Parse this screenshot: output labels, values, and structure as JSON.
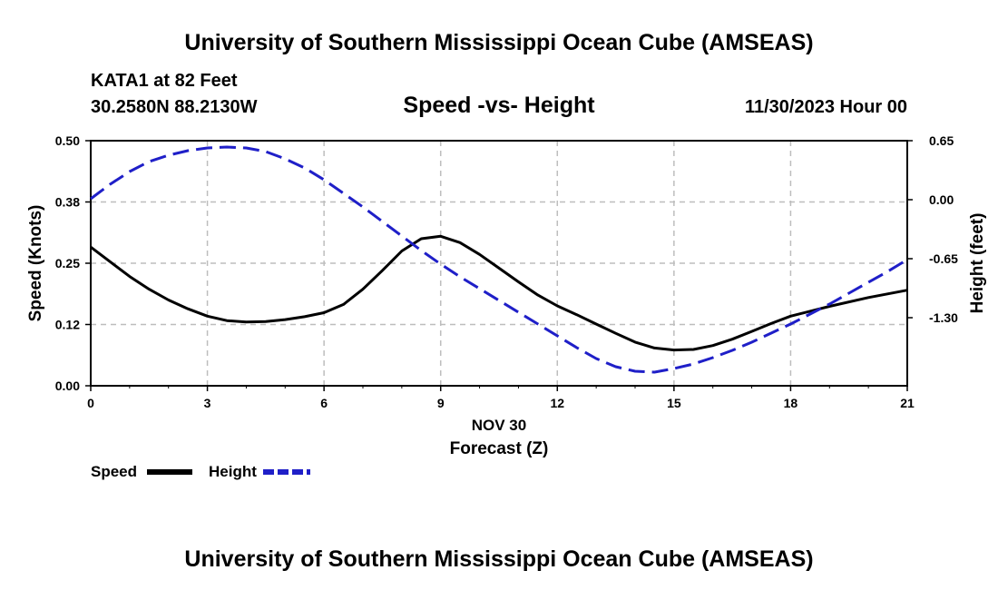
{
  "header": {
    "title": "University of Southern Mississippi Ocean Cube (AMSEAS)",
    "station": "KATA1 at 82 Feet",
    "coords": "30.2580N  88.2130W",
    "date": "11/30/2023 Hour 00",
    "footer_title": "University of Southern Mississippi Ocean Cube (AMSEAS)"
  },
  "chart_data": {
    "type": "line",
    "title": "Speed -vs- Height",
    "xlabel_date": "NOV 30",
    "xlabel": "Forecast (Z)",
    "ylabel_left": "Speed (Knots)",
    "ylabel_right": "Height (feet)",
    "xlim": [
      0,
      21
    ],
    "ylim_left": [
      0.0,
      0.5
    ],
    "ylim_right": [
      -2.05,
      0.65
    ],
    "x_ticks": [
      "0",
      "3",
      "6",
      "9",
      "12",
      "15",
      "18",
      "21"
    ],
    "x_tick_values": [
      0,
      3,
      6,
      9,
      12,
      15,
      18,
      21
    ],
    "y_left_ticks": [
      "0.00",
      "0.12",
      "0.25",
      "0.38",
      "0.50"
    ],
    "y_left_tick_values": [
      0.0,
      0.125,
      0.25,
      0.375,
      0.5
    ],
    "y_right_ticks": [
      "0.65",
      "0.00",
      "-0.65",
      "-1.30"
    ],
    "y_right_tick_values": [
      0.65,
      0.0,
      -0.65,
      -1.3
    ],
    "grid": true,
    "series": [
      {
        "name": "Speed",
        "axis": "left",
        "color": "#000000",
        "style": "solid",
        "x": [
          0,
          1,
          1.5,
          2,
          2.5,
          3,
          3.5,
          4,
          4.5,
          5,
          5.5,
          6,
          6.5,
          7,
          7.5,
          8,
          8.5,
          9,
          9.5,
          10,
          10.5,
          11,
          11.5,
          12,
          12.5,
          13,
          13.5,
          14,
          14.5,
          15,
          15.5,
          16,
          16.5,
          17,
          17.5,
          18,
          19,
          20,
          21
        ],
        "values": [
          0.283,
          0.223,
          0.197,
          0.175,
          0.157,
          0.142,
          0.133,
          0.13,
          0.131,
          0.135,
          0.141,
          0.149,
          0.166,
          0.197,
          0.235,
          0.275,
          0.3,
          0.305,
          0.292,
          0.268,
          0.24,
          0.212,
          0.185,
          0.163,
          0.145,
          0.126,
          0.107,
          0.089,
          0.077,
          0.073,
          0.074,
          0.082,
          0.095,
          0.111,
          0.127,
          0.142,
          0.162,
          0.18,
          0.195
        ]
      },
      {
        "name": "Height",
        "axis": "right",
        "color": "#1f1fc8",
        "style": "dashed",
        "x": [
          0,
          0.5,
          1,
          1.5,
          2,
          2.5,
          3,
          3.5,
          4,
          4.5,
          5,
          5.5,
          6,
          6.5,
          7,
          7.5,
          8,
          8.5,
          9,
          9.5,
          10,
          10.5,
          11,
          11.5,
          12,
          12.5,
          13,
          13.5,
          14,
          14.5,
          15,
          15.5,
          16,
          16.5,
          17,
          17.5,
          18,
          18.5,
          19,
          19.5,
          20,
          20.5,
          21
        ],
        "values": [
          0.01,
          0.17,
          0.31,
          0.42,
          0.49,
          0.54,
          0.57,
          0.58,
          0.57,
          0.53,
          0.45,
          0.35,
          0.22,
          0.07,
          -0.08,
          -0.24,
          -0.4,
          -0.56,
          -0.71,
          -0.85,
          -0.98,
          -1.11,
          -1.24,
          -1.37,
          -1.5,
          -1.63,
          -1.75,
          -1.84,
          -1.89,
          -1.9,
          -1.86,
          -1.81,
          -1.74,
          -1.66,
          -1.57,
          -1.47,
          -1.37,
          -1.26,
          -1.15,
          -1.03,
          -0.91,
          -0.79,
          -0.66
        ]
      }
    ]
  },
  "legend": {
    "speed_label": "Speed",
    "height_label": "Height"
  }
}
